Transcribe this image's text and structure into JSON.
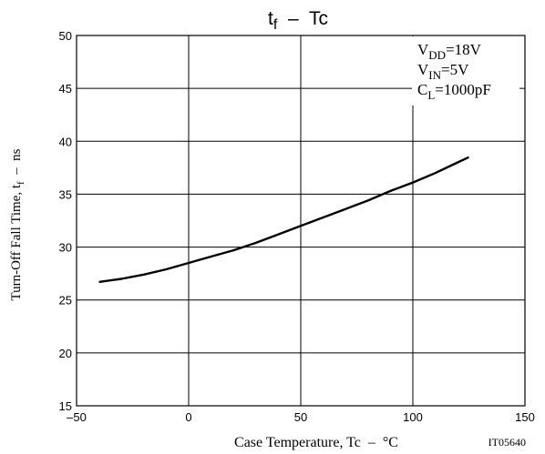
{
  "chart_data": {
    "type": "line",
    "title": {
      "main": "t",
      "sub": "f",
      "rest": "  –  Tc"
    },
    "xlabel": "Case Temperature, Tc  –  °C",
    "ylabel": {
      "main": "Turn-Off Fall Time, t",
      "sub": "f",
      "rest": "  –  ns"
    },
    "code": "IT05640",
    "xlim": [
      -50,
      150
    ],
    "ylim": [
      15,
      50
    ],
    "xticks": [
      -50,
      0,
      50,
      100,
      150
    ],
    "yticks": [
      15,
      20,
      25,
      30,
      35,
      40,
      45,
      50
    ],
    "xtick_labels": [
      "–50",
      "0",
      "50",
      "100",
      "150"
    ],
    "grid": true,
    "conditions": [
      {
        "main": "V",
        "sub": "DD",
        "rest": "=18V"
      },
      {
        "main": "V",
        "sub": "IN",
        "rest": "=5V"
      },
      {
        "main": "C",
        "sub": "L",
        "rest": "=1000pF"
      }
    ],
    "series": [
      {
        "x": [
          -40,
          -30,
          -20,
          -10,
          0,
          10,
          20,
          30,
          40,
          50,
          60,
          70,
          80,
          90,
          100,
          110,
          120,
          125
        ],
        "y": [
          26.7,
          27.0,
          27.4,
          27.9,
          28.5,
          29.1,
          29.7,
          30.4,
          31.2,
          32.0,
          32.8,
          33.6,
          34.4,
          35.3,
          36.1,
          37.0,
          38.0,
          38.5
        ]
      }
    ],
    "colors": {
      "line": "#000000",
      "grid": "#000000",
      "background": "#ffffff"
    }
  }
}
